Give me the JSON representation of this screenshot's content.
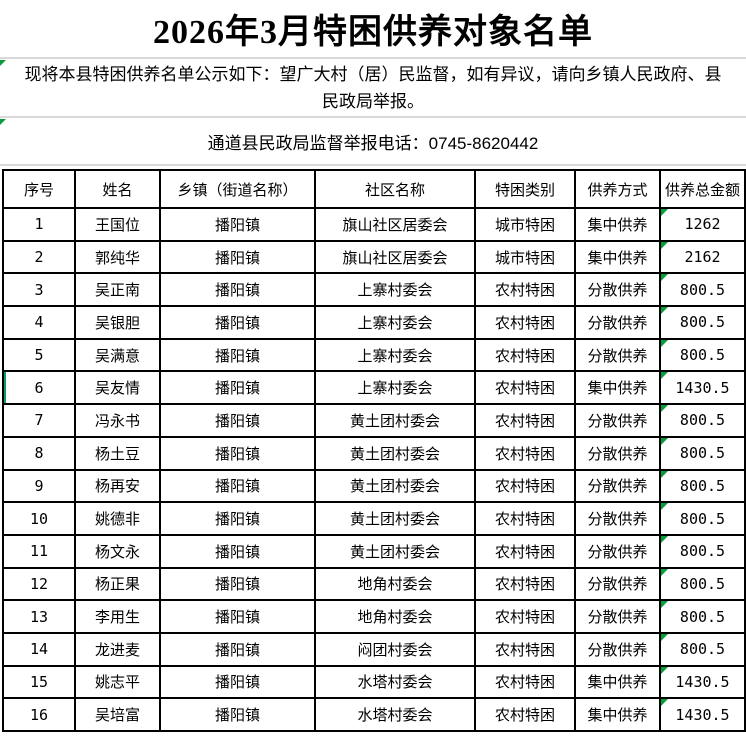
{
  "title": "2026年3月特困供养对象名单",
  "notice": {
    "text": "现将本县特困供养名单公示如下：望广大村（居）民监督，如有异议，请向乡镇人民政府、县民政局举报。"
  },
  "hotline": {
    "text": "通道县民政局监督举报电话：0745-8620442"
  },
  "colors": {
    "indicator_green": "#0a9b3d",
    "selection_green": "#0d9b60",
    "divider_gray": "#d9d9d9",
    "border_black": "#000000"
  },
  "table": {
    "headers": [
      "序号",
      "姓名",
      "乡镇（街道名称）",
      "社区名称",
      "特困类别",
      "供养方式",
      "供养总金额"
    ],
    "selected_row_number": "6",
    "rows": [
      [
        "1",
        "王国位",
        "播阳镇",
        "旗山社区居委会",
        "城市特困",
        "集中供养",
        "1262"
      ],
      [
        "2",
        "郭纯华",
        "播阳镇",
        "旗山社区居委会",
        "城市特困",
        "集中供养",
        "2162"
      ],
      [
        "3",
        "吴正南",
        "播阳镇",
        "上寨村委会",
        "农村特困",
        "分散供养",
        "800.5"
      ],
      [
        "4",
        "吴银胆",
        "播阳镇",
        "上寨村委会",
        "农村特困",
        "分散供养",
        "800.5"
      ],
      [
        "5",
        "吴满意",
        "播阳镇",
        "上寨村委会",
        "农村特困",
        "分散供养",
        "800.5"
      ],
      [
        "6",
        "吴友情",
        "播阳镇",
        "上寨村委会",
        "农村特困",
        "集中供养",
        "1430.5"
      ],
      [
        "7",
        "冯永书",
        "播阳镇",
        "黄土团村委会",
        "农村特困",
        "分散供养",
        "800.5"
      ],
      [
        "8",
        "杨土豆",
        "播阳镇",
        "黄土团村委会",
        "农村特困",
        "分散供养",
        "800.5"
      ],
      [
        "9",
        "杨再安",
        "播阳镇",
        "黄土团村委会",
        "农村特困",
        "分散供养",
        "800.5"
      ],
      [
        "10",
        "姚德非",
        "播阳镇",
        "黄土团村委会",
        "农村特困",
        "分散供养",
        "800.5"
      ],
      [
        "11",
        "杨文永",
        "播阳镇",
        "黄土团村委会",
        "农村特困",
        "分散供养",
        "800.5"
      ],
      [
        "12",
        "杨正果",
        "播阳镇",
        "地角村委会",
        "农村特困",
        "分散供养",
        "800.5"
      ],
      [
        "13",
        "李用生",
        "播阳镇",
        "地角村委会",
        "农村特困",
        "分散供养",
        "800.5"
      ],
      [
        "14",
        "龙进麦",
        "播阳镇",
        "闷团村委会",
        "农村特困",
        "分散供养",
        "800.5"
      ],
      [
        "15",
        "姚志平",
        "播阳镇",
        "水塔村委会",
        "农村特困",
        "集中供养",
        "1430.5"
      ],
      [
        "16",
        "吴培富",
        "播阳镇",
        "水塔村委会",
        "农村特困",
        "集中供养",
        "1430.5"
      ]
    ]
  }
}
